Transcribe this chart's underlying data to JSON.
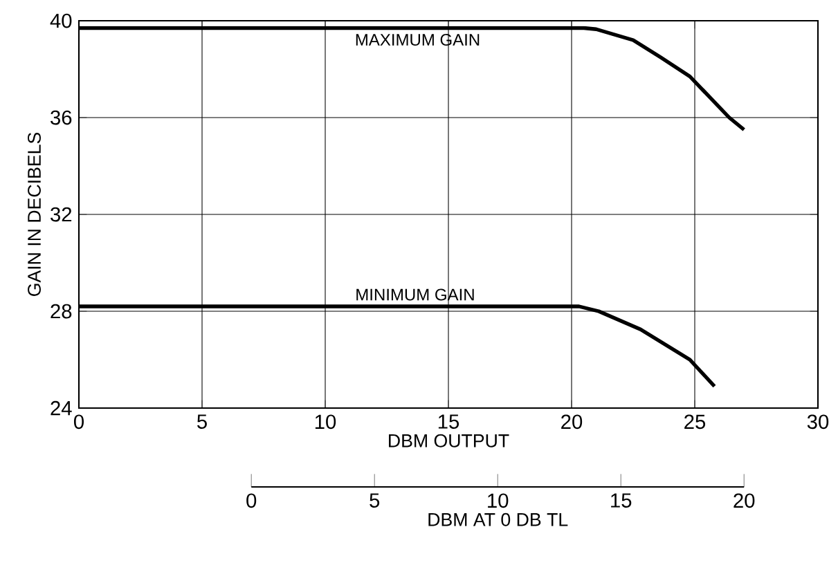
{
  "chart_data": {
    "type": "line",
    "xlabel": "DBM OUTPUT",
    "ylabel": "GAIN IN DECIBELS",
    "x2label": "DBM AT 0 DB TL",
    "xlim": [
      0,
      30
    ],
    "ylim": [
      24,
      40
    ],
    "xticks": [
      0,
      5,
      10,
      15,
      20,
      25,
      30
    ],
    "yticks": [
      24,
      28,
      32,
      36,
      40
    ],
    "x2lim": [
      0,
      20
    ],
    "x2ticks": [
      0,
      5,
      10,
      15,
      20
    ],
    "grid": true,
    "marker": "none",
    "line_style": "solid",
    "series": [
      {
        "name": "MAXIMUM GAIN",
        "color": "#000000",
        "x": [
          0,
          20.5,
          21.0,
          22.5,
          23.6,
          24.8,
          26.4,
          27.0
        ],
        "values": [
          39.7,
          39.7,
          39.65,
          39.2,
          38.5,
          37.7,
          36.0,
          35.5
        ]
      },
      {
        "name": "MINIMUM GAIN",
        "color": "#000000",
        "x": [
          0,
          20.3,
          21.1,
          22.8,
          24.8,
          25.8
        ],
        "values": [
          28.2,
          28.2,
          28.0,
          27.25,
          26.0,
          24.9
        ]
      }
    ]
  }
}
